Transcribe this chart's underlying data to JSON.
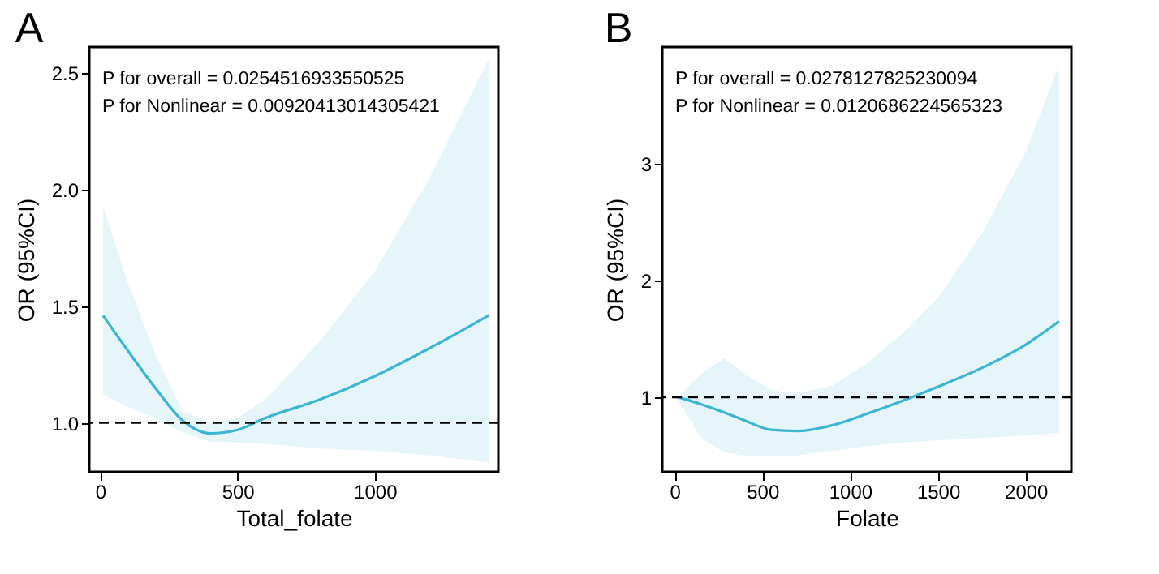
{
  "chart_data": [
    {
      "type": "line",
      "title": "A",
      "xlabel": "Total_folate",
      "ylabel": "OR (95%CI)",
      "annotations": [
        "P for overall = 0.0254516933550525",
        "P for Nonlinear = 0.00920413014305421"
      ],
      "x": [
        10,
        100,
        200,
        300,
        400,
        500,
        600,
        800,
        1000,
        1200,
        1415
      ],
      "series": [
        {
          "color": "#3bb5d3",
          "values": [
            1.46,
            1.31,
            1.15,
            1.01,
            0.955,
            0.97,
            1.02,
            1.1,
            1.2,
            1.32,
            1.46
          ],
          "lower": [
            1.12,
            1.07,
            1.02,
            0.96,
            0.92,
            0.915,
            0.91,
            0.89,
            0.88,
            0.86,
            0.83
          ],
          "upper": [
            1.93,
            1.6,
            1.3,
            1.05,
            1.0,
            1.02,
            1.1,
            1.35,
            1.65,
            2.05,
            2.56
          ]
        }
      ],
      "xlim": [
        -40,
        1450
      ],
      "xticks": [
        0,
        500,
        1000
      ],
      "ylim": [
        0.79,
        2.61
      ],
      "yticks": [
        {
          "value": 1,
          "label": "1.0"
        },
        {
          "value": 1.5,
          "label": "1.5"
        },
        {
          "value": 2,
          "label": "2.0"
        },
        {
          "value": 2.5,
          "label": "2.5"
        }
      ],
      "ref_lines": [
        {
          "axis": "y",
          "value": 1,
          "color": "#000000",
          "line_style": "dashed"
        }
      ],
      "grid": false
    },
    {
      "type": "line",
      "title": "B",
      "xlabel": "Folate",
      "ylabel": "OR (95%CI)",
      "annotations": [
        "P for overall = 0.0278127825230094",
        "P for Nonlinear = 0.0120686224565323"
      ],
      "x": [
        20,
        150,
        280,
        400,
        550,
        700,
        900,
        1100,
        1300,
        1500,
        1750,
        2000,
        2190
      ],
      "series": [
        {
          "color": "#3bb5d3",
          "values": [
            1.0,
            0.94,
            0.87,
            0.8,
            0.72,
            0.71,
            0.76,
            0.86,
            0.97,
            1.09,
            1.25,
            1.45,
            1.65
          ],
          "lower": [
            0.97,
            0.65,
            0.53,
            0.5,
            0.49,
            0.5,
            0.54,
            0.58,
            0.61,
            0.63,
            0.65,
            0.67,
            0.69
          ],
          "upper": [
            1.0,
            1.2,
            1.33,
            1.2,
            1.06,
            1.03,
            1.1,
            1.3,
            1.55,
            1.85,
            2.4,
            3.1,
            3.85
          ]
        }
      ],
      "xlim": [
        -70,
        2260
      ],
      "xticks": [
        0,
        500,
        1000,
        1500,
        2000
      ],
      "ylim": [
        0.36,
        4.0
      ],
      "yticks": [
        1,
        2,
        3
      ],
      "ref_lines": [
        {
          "axis": "y",
          "value": 1,
          "color": "#000000",
          "line_style": "dashed"
        }
      ],
      "grid": false
    }
  ]
}
